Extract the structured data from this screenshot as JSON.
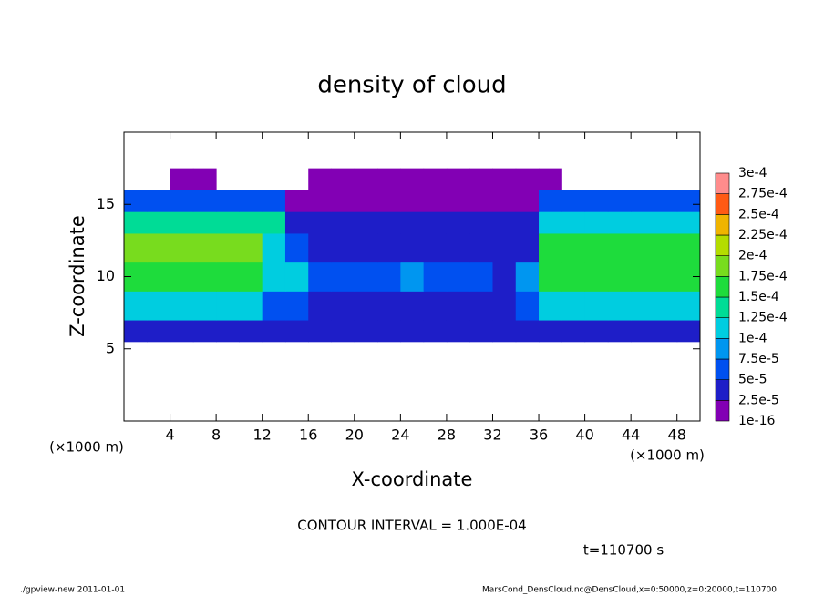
{
  "chart_data": {
    "type": "heatmap",
    "title": "density of cloud",
    "x_label": "X-coordinate",
    "y_label": "Z-coordinate",
    "x_unit": "(×1000 m)",
    "y_unit": "(×1000 m)",
    "xlim": [
      0,
      50
    ],
    "ylim": [
      0,
      20
    ],
    "xticks": [
      4,
      8,
      12,
      16,
      20,
      24,
      28,
      32,
      36,
      40,
      44,
      48
    ],
    "yticks": [
      5,
      10,
      15
    ],
    "xbins": [
      0,
      2,
      4,
      6,
      8,
      10,
      12,
      14,
      16,
      18,
      20,
      22,
      24,
      26,
      28,
      30,
      32,
      34,
      36,
      38,
      40,
      42,
      44,
      46,
      48,
      50
    ],
    "ybins": [
      5.5,
      7,
      9,
      11,
      13,
      14.5,
      16,
      17.5
    ],
    "values": [
      [
        3e-05,
        3e-05,
        3e-05,
        3e-05,
        3e-05,
        3e-05,
        3e-05,
        3e-05,
        4e-05,
        4e-05,
        4e-05,
        4e-05,
        4e-05,
        4e-05,
        4e-05,
        4e-05,
        4e-05,
        4e-05,
        3e-05,
        3e-05,
        3e-05,
        3e-05,
        3e-05,
        3e-05,
        3e-05
      ],
      [
        0.00012,
        0.00012,
        0.00012,
        0.00012,
        0.00012,
        0.00012,
        6e-05,
        6e-05,
        4e-05,
        4e-05,
        4e-05,
        4e-05,
        4e-05,
        4e-05,
        4e-05,
        4e-05,
        4e-05,
        5e-05,
        0.00011,
        0.00011,
        0.00011,
        0.00011,
        0.00011,
        0.00011,
        0.00011
      ],
      [
        0.00017,
        0.00017,
        0.00017,
        0.00017,
        0.00017,
        0.00017,
        0.0001,
        0.0001,
        5e-05,
        6e-05,
        5e-05,
        7e-05,
        8e-05,
        7e-05,
        6e-05,
        5e-05,
        4e-05,
        8e-05,
        0.00016,
        0.00016,
        0.00016,
        0.00016,
        0.00016,
        0.00016,
        0.00016
      ],
      [
        0.00018,
        0.00018,
        0.00018,
        0.00018,
        0.00018,
        0.00018,
        0.00012,
        6e-05,
        4e-05,
        4e-05,
        4e-05,
        4e-05,
        4e-05,
        4e-05,
        4e-05,
        4e-05,
        4e-05,
        4e-05,
        0.00017,
        0.00017,
        0.00017,
        0.00017,
        0.00017,
        0.00017,
        0.00017
      ],
      [
        0.00013,
        0.00013,
        0.00013,
        0.00013,
        0.00013,
        0.00013,
        0.00013,
        3e-05,
        3e-05,
        3e-05,
        3e-05,
        3e-05,
        3e-05,
        3e-05,
        3e-05,
        3e-05,
        3e-05,
        3e-05,
        0.00012,
        0.00012,
        0.00012,
        0.00012,
        0.00012,
        0.00012,
        0.00012
      ],
      [
        5e-05,
        5e-05,
        5e-05,
        5e-05,
        5e-05,
        5e-05,
        5e-05,
        2e-05,
        2e-05,
        2e-05,
        2e-05,
        2e-05,
        2e-05,
        2e-05,
        2e-05,
        2e-05,
        2e-05,
        2e-05,
        5e-05,
        5e-05,
        5e-05,
        5e-05,
        5e-05,
        5e-05,
        5e-05
      ],
      [
        null,
        null,
        1e-05,
        1e-05,
        null,
        null,
        null,
        null,
        1e-05,
        1e-05,
        1e-05,
        1e-05,
        1e-05,
        1e-05,
        1e-05,
        1e-05,
        1e-05,
        1e-05,
        1e-05,
        null,
        null,
        null,
        null,
        null,
        null
      ]
    ],
    "levels": [
      {
        "value": 1e-16,
        "label": "1e-16"
      },
      {
        "value": 2.5e-05,
        "label": "2.5e-5"
      },
      {
        "value": 5e-05,
        "label": "5e-5"
      },
      {
        "value": 7.5e-05,
        "label": "7.5e-5"
      },
      {
        "value": 0.0001,
        "label": "1e-4"
      },
      {
        "value": 0.000125,
        "label": "1.25e-4"
      },
      {
        "value": 0.00015,
        "label": "1.5e-4"
      },
      {
        "value": 0.000175,
        "label": "1.75e-4"
      },
      {
        "value": 0.0002,
        "label": "2e-4"
      },
      {
        "value": 0.000225,
        "label": "2.25e-4"
      },
      {
        "value": 0.00025,
        "label": "2.5e-4"
      },
      {
        "value": 0.000275,
        "label": "2.75e-4"
      },
      {
        "value": 0.0003,
        "label": "3e-4"
      }
    ],
    "colors": [
      "#8200b4",
      "#1e1ec8",
      "#0050f0",
      "#0096f0",
      "#00cde0",
      "#00dc96",
      "#1edc3c",
      "#78dc1e",
      "#b4dc00",
      "#f0b400",
      "#ff5a14",
      "#ff8c8c"
    ],
    "contour_note": "CONTOUR INTERVAL = 1.000E-04",
    "time_note": "t=110700 s",
    "footer_left": "./gpview-new  2011-01-01",
    "footer_right": "MarsCond_DensCloud.nc@DensCloud,x=0:50000,z=0:20000,t=110700"
  }
}
